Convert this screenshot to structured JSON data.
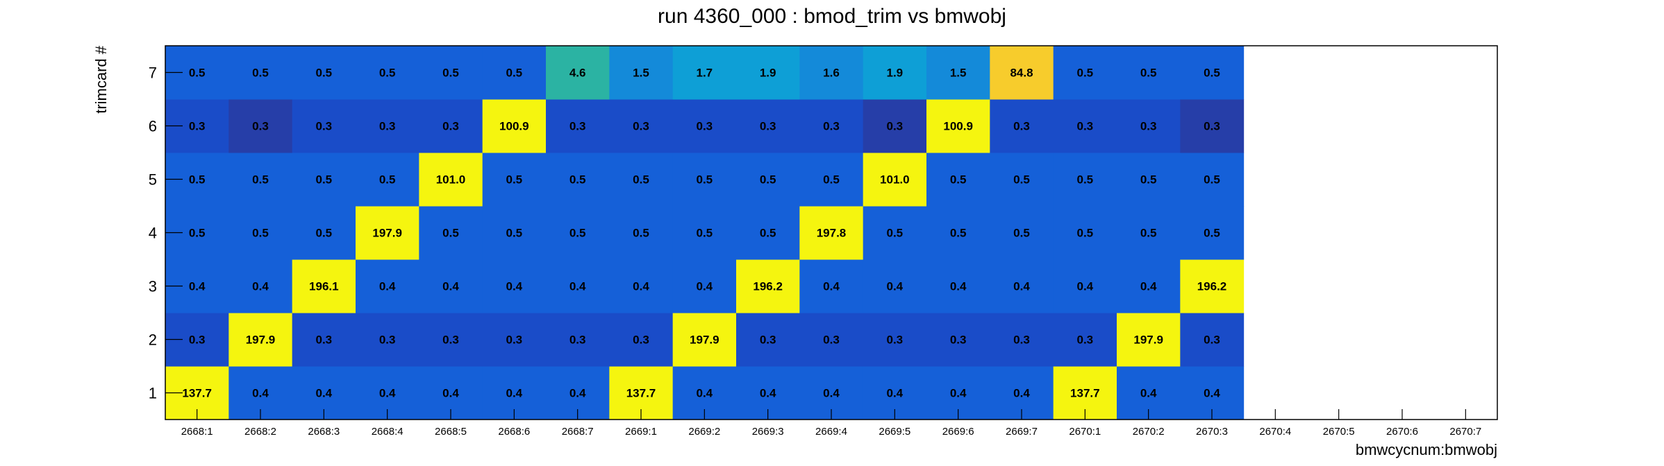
{
  "chart_data": {
    "type": "heatmap",
    "title": "run 4360_000 : bmod_trim vs bmwobj",
    "xlabel": "bmwcycnum:bmwobj",
    "ylabel": "trimcard #",
    "x_categories": [
      "2668:1",
      "2668:2",
      "2668:3",
      "2668:4",
      "2668:5",
      "2668:6",
      "2668:7",
      "2669:1",
      "2669:2",
      "2669:3",
      "2669:4",
      "2669:5",
      "2669:6",
      "2669:7",
      "2670:1",
      "2670:2",
      "2670:3",
      "2670:4",
      "2670:5",
      "2670:6",
      "2670:7"
    ],
    "y_categories": [
      "1",
      "2",
      "3",
      "4",
      "5",
      "6",
      "7"
    ],
    "filled_columns": 17,
    "values": [
      [
        "137.7",
        "0.4",
        "0.4",
        "0.4",
        "0.4",
        "0.4",
        "0.4",
        "137.7",
        "0.4",
        "0.4",
        "0.4",
        "0.4",
        "0.4",
        "0.4",
        "137.7",
        "0.4",
        "0.4"
      ],
      [
        "0.3",
        "197.9",
        "0.3",
        "0.3",
        "0.3",
        "0.3",
        "0.3",
        "0.3",
        "197.9",
        "0.3",
        "0.3",
        "0.3",
        "0.3",
        "0.3",
        "0.3",
        "197.9",
        "0.3"
      ],
      [
        "0.4",
        "0.4",
        "196.1",
        "0.4",
        "0.4",
        "0.4",
        "0.4",
        "0.4",
        "0.4",
        "196.2",
        "0.4",
        "0.4",
        "0.4",
        "0.4",
        "0.4",
        "0.4",
        "196.2"
      ],
      [
        "0.5",
        "0.5",
        "0.5",
        "197.9",
        "0.5",
        "0.5",
        "0.5",
        "0.5",
        "0.5",
        "0.5",
        "197.8",
        "0.5",
        "0.5",
        "0.5",
        "0.5",
        "0.5",
        "0.5"
      ],
      [
        "0.5",
        "0.5",
        "0.5",
        "0.5",
        "101.0",
        "0.5",
        "0.5",
        "0.5",
        "0.5",
        "0.5",
        "0.5",
        "101.0",
        "0.5",
        "0.5",
        "0.5",
        "0.5",
        "0.5"
      ],
      [
        "0.3",
        "0.3",
        "0.3",
        "0.3",
        "0.3",
        "100.9",
        "0.3",
        "0.3",
        "0.3",
        "0.3",
        "0.3",
        "0.3",
        "100.9",
        "0.3",
        "0.3",
        "0.3",
        "0.3"
      ],
      [
        "0.5",
        "0.5",
        "0.5",
        "0.5",
        "0.5",
        "0.5",
        "4.6",
        "1.5",
        "1.7",
        "1.9",
        "1.6",
        "1.9",
        "1.5",
        "84.8",
        "0.5",
        "0.5",
        "0.5"
      ]
    ],
    "colors": {
      "yellow": "#f5f50f",
      "gold": "#f7cc2c",
      "teal": "#2bb3a3",
      "cyan": "#0e9fd6",
      "lightblue": "#148ad9",
      "sky": "#1a7fda",
      "blue": "#1560d8",
      "midblue": "#1a4cc8",
      "darkblue": "#263ea8"
    },
    "cell_colors": [
      [
        "yellow",
        "blue",
        "blue",
        "blue",
        "blue",
        "blue",
        "blue",
        "yellow",
        "blue",
        "blue",
        "blue",
        "blue",
        "blue",
        "blue",
        "yellow",
        "blue",
        "blue"
      ],
      [
        "midblue",
        "yellow",
        "midblue",
        "midblue",
        "midblue",
        "midblue",
        "midblue",
        "midblue",
        "yellow",
        "midblue",
        "midblue",
        "midblue",
        "midblue",
        "midblue",
        "midblue",
        "yellow",
        "midblue"
      ],
      [
        "blue",
        "blue",
        "yellow",
        "blue",
        "blue",
        "blue",
        "blue",
        "blue",
        "blue",
        "yellow",
        "blue",
        "blue",
        "blue",
        "blue",
        "blue",
        "blue",
        "yellow"
      ],
      [
        "blue",
        "blue",
        "blue",
        "yellow",
        "blue",
        "blue",
        "blue",
        "blue",
        "blue",
        "blue",
        "yellow",
        "blue",
        "blue",
        "blue",
        "blue",
        "blue",
        "blue"
      ],
      [
        "blue",
        "blue",
        "blue",
        "blue",
        "yellow",
        "blue",
        "blue",
        "blue",
        "blue",
        "blue",
        "blue",
        "yellow",
        "blue",
        "blue",
        "blue",
        "blue",
        "blue"
      ],
      [
        "midblue",
        "darkblue",
        "midblue",
        "midblue",
        "midblue",
        "yellow",
        "midblue",
        "midblue",
        "midblue",
        "midblue",
        "midblue",
        "darkblue",
        "yellow",
        "midblue",
        "midblue",
        "midblue",
        "darkblue"
      ],
      [
        "blue",
        "blue",
        "blue",
        "blue",
        "blue",
        "blue",
        "teal",
        "lightblue",
        "cyan",
        "cyan",
        "lightblue",
        "cyan",
        "lightblue",
        "gold",
        "blue",
        "blue",
        "blue"
      ]
    ],
    "grid": false,
    "legend": "none"
  }
}
